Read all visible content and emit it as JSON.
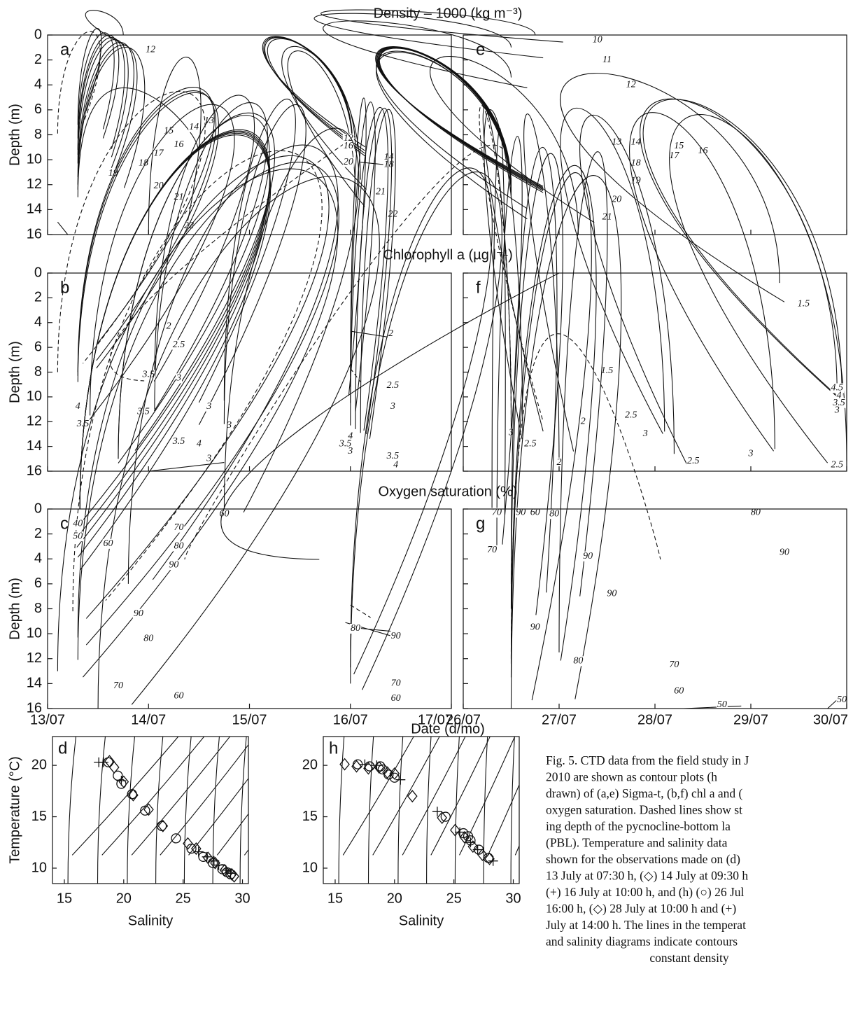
{
  "titles": [
    "Density – 1000 (kg m⁻³)",
    "Chlorophyll a (µg l⁻¹)",
    "Oxygen saturation (%)"
  ],
  "xlabel": "Date (d/mo)",
  "caption": [
    "Fig. 5. CTD data from the field study in J",
    "2010 are shown as contour plots (h",
    "drawn) of (a,e) Sigma-t, (b,f) chl a and (",
    "oxygen saturation. Dashed lines show st",
    "ing depth of the pycnocline-bottom la",
    "(PBL). Temperature and salinity data",
    "shown for the observations made on (d)",
    "13 July at 07:30 h, (◇) 14 July at 09:30 h",
    "(+) 16 July at 10:00 h, and (h) (○) 26 Jul",
    "16:00 h, (◇) 28 July at 10:00 h and (+)",
    "July at 14:00 h. The lines in the temperat",
    "and salinity diagrams indicate contours",
    "constant density"
  ],
  "chart_data": [
    {
      "type": "contour",
      "label": "a",
      "ylabel": "Depth (m)",
      "xlim": [
        0,
        4
      ],
      "ylim": [
        0,
        16
      ],
      "y_inverted": true,
      "yticks": [
        0,
        2,
        4,
        6,
        8,
        10,
        12,
        14,
        16
      ],
      "contour_labels": [
        12,
        13,
        14,
        15,
        16,
        17,
        18,
        19,
        20,
        21,
        22,
        12,
        16,
        20,
        14,
        18,
        21,
        22
      ]
    },
    {
      "type": "contour",
      "label": "b",
      "ylabel": "Depth (m)",
      "xlim": [
        0,
        4
      ],
      "ylim": [
        0,
        16
      ],
      "y_inverted": true,
      "yticks": [
        0,
        2,
        4,
        6,
        8,
        10,
        12,
        14,
        16
      ],
      "contour_labels": [
        2,
        2.5,
        3.5,
        3,
        4,
        3.5,
        3.5,
        3,
        3,
        3.5,
        4,
        3,
        2,
        2.5,
        3,
        4,
        3.5,
        3,
        3.5,
        4
      ]
    },
    {
      "type": "contour",
      "label": "c",
      "ylabel": "Depth (m)",
      "xlim": [
        0,
        4
      ],
      "ylim": [
        0,
        16
      ],
      "y_inverted": true,
      "yticks": [
        0,
        2,
        4,
        6,
        8,
        10,
        12,
        14,
        16
      ],
      "xticks": [
        {
          "value": 0,
          "label": "13/07"
        },
        {
          "value": 1,
          "label": "14/07"
        },
        {
          "value": 2,
          "label": "15/07"
        },
        {
          "value": 3,
          "label": "16/07"
        },
        {
          "value": 4,
          "label": "17/07"
        }
      ],
      "contour_labels": [
        40,
        50,
        60,
        70,
        80,
        90,
        60,
        90,
        80,
        70,
        60,
        80,
        90,
        70,
        60
      ]
    },
    {
      "type": "contour",
      "label": "e",
      "xlim": [
        0,
        4
      ],
      "ylim": [
        0,
        16
      ],
      "y_inverted": true,
      "contour_labels": [
        10,
        11,
        12,
        13,
        14,
        15,
        16,
        17,
        18,
        19,
        20,
        21
      ]
    },
    {
      "type": "contour",
      "label": "f",
      "xlim": [
        0,
        4
      ],
      "ylim": [
        0,
        16
      ],
      "y_inverted": true,
      "contour_labels": [
        1.5,
        1.5,
        2,
        2.5,
        3,
        2.5,
        2,
        3,
        2.5,
        3,
        2.5,
        4.5,
        4,
        3.5,
        3
      ]
    },
    {
      "type": "contour",
      "label": "g",
      "xlim": [
        0,
        4
      ],
      "ylim": [
        0,
        16
      ],
      "y_inverted": true,
      "xticks": [
        {
          "value": 0,
          "label": "26/07"
        },
        {
          "value": 1,
          "label": "27/07"
        },
        {
          "value": 2,
          "label": "28/07"
        },
        {
          "value": 3,
          "label": "29/07"
        },
        {
          "value": 4,
          "label": "30/07"
        }
      ],
      "contour_labels": [
        70,
        90,
        60,
        80,
        80,
        70,
        90,
        90,
        90,
        90,
        80,
        70,
        60,
        50,
        50
      ]
    },
    {
      "type": "scatter",
      "label": "d",
      "xlabel": "Salinity",
      "ylabel": "Temperature (°C)",
      "xlim": [
        14,
        30.5
      ],
      "xticks": [
        15,
        20,
        25,
        30
      ],
      "ylim": [
        8.5,
        22.8
      ],
      "yticks": [
        10,
        15,
        20
      ],
      "series": [
        {
          "marker": "circle",
          "x": [
            18.7,
            19.5,
            19.8,
            20.7,
            21.8,
            23.2,
            24.4,
            25.7,
            26.7,
            27.5,
            28.3,
            28.7,
            29.0
          ],
          "values": [
            20.3,
            19.0,
            18.2,
            17.2,
            15.6,
            14.1,
            12.9,
            11.9,
            11.1,
            10.5,
            9.9,
            9.6,
            9.4
          ]
        },
        {
          "marker": "diamond",
          "x": [
            18.8,
            19.2,
            20.0,
            20.8,
            22.1,
            23.3,
            25.4,
            26.1,
            27.1,
            27.7,
            28.5,
            29.1,
            29.3
          ],
          "values": [
            20.4,
            19.8,
            18.4,
            17.1,
            15.7,
            14.1,
            12.4,
            11.9,
            11.0,
            10.5,
            9.8,
            9.4,
            9.2
          ]
        },
        {
          "marker": "plus",
          "x": [
            17.9,
            18.3,
            19.8,
            26.3,
            27.0,
            27.6,
            28.0,
            28.6,
            29.0
          ],
          "values": [
            20.3,
            20.3,
            18.5,
            11.6,
            11.1,
            10.7,
            10.3,
            9.8,
            9.5
          ]
        }
      ]
    },
    {
      "type": "scatter",
      "label": "h",
      "xlabel": "Salinity",
      "xlim": [
        14,
        30.5
      ],
      "xticks": [
        15,
        20,
        25,
        30
      ],
      "ylim": [
        8.5,
        22.8
      ],
      "yticks": [
        10,
        15,
        20
      ],
      "series": [
        {
          "marker": "circle",
          "x": [
            16.9,
            17.9,
            18.8,
            19.0,
            19.5,
            20.0,
            24.3,
            25.8,
            26.2,
            26.4,
            27.1,
            27.9
          ],
          "values": [
            20.1,
            19.9,
            19.9,
            19.6,
            19.1,
            18.8,
            15.0,
            13.4,
            13.1,
            12.7,
            11.8,
            11.0
          ]
        },
        {
          "marker": "diamond",
          "x": [
            15.8,
            16.8,
            17.8,
            18.7,
            19.4,
            20.0,
            21.5,
            24.0,
            25.1,
            25.9,
            26.6,
            27.4,
            28.0
          ],
          "values": [
            20.1,
            19.9,
            19.7,
            19.8,
            19.3,
            19.2,
            17.0,
            14.9,
            13.7,
            13.0,
            12.1,
            11.3,
            10.9
          ]
        },
        {
          "marker": "plus",
          "x": [
            17.5,
            18.5,
            20.5,
            23.6,
            25.5,
            26.4,
            27.0,
            28.3
          ],
          "values": [
            20.1,
            20.0,
            18.6,
            15.5,
            13.5,
            12.5,
            11.8,
            10.7
          ]
        }
      ]
    }
  ]
}
